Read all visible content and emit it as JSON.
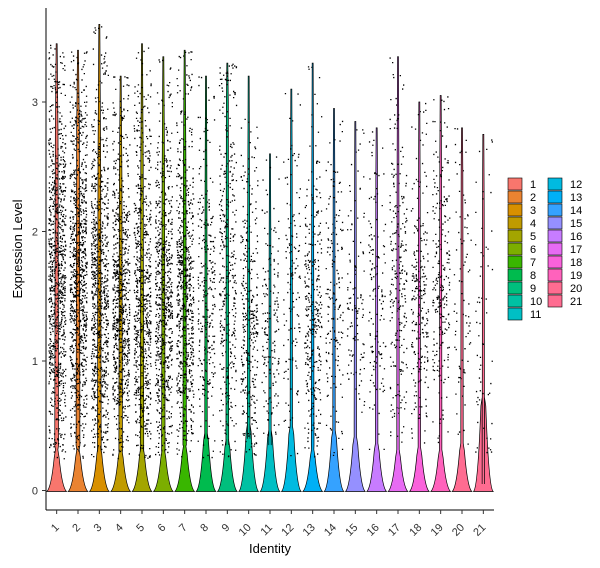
{
  "chart_data": {
    "type": "violin",
    "xlabel": "Identity",
    "ylabel": "Expression Level",
    "ylim": [
      -0.2,
      3.75
    ],
    "yticks": [
      0,
      1,
      2,
      3
    ],
    "categories": [
      "1",
      "2",
      "3",
      "4",
      "5",
      "6",
      "7",
      "8",
      "9",
      "10",
      "11",
      "12",
      "13",
      "14",
      "15",
      "16",
      "17",
      "18",
      "19",
      "20",
      "21"
    ],
    "colors": [
      "#F8766D",
      "#EA8331",
      "#D89000",
      "#C09B00",
      "#A3A500",
      "#7CAE00",
      "#39B600",
      "#00BB4E",
      "#00BF7D",
      "#00C1A3",
      "#00BFC4",
      "#00BAE0",
      "#00B0F6",
      "#35A2FF",
      "#9590FF",
      "#C77CFF",
      "#E76BF3",
      "#FA62DB",
      "#FF62BC",
      "#FF6C91",
      "#FF6C91"
    ],
    "groups": [
      {
        "id": "1",
        "max": 3.45,
        "base_height": 0.3,
        "body_top": 2.75,
        "body_bottom": 0.35,
        "density": 1.0
      },
      {
        "id": "2",
        "max": 3.4,
        "base_height": 0.3,
        "body_top": 2.8,
        "body_bottom": 0.35,
        "density": 1.0
      },
      {
        "id": "3",
        "max": 3.6,
        "base_height": 0.33,
        "body_top": 2.6,
        "body_bottom": 0.3,
        "density": 0.95
      },
      {
        "id": "4",
        "max": 3.2,
        "base_height": 0.3,
        "body_top": 2.45,
        "body_bottom": 0.3,
        "density": 0.9
      },
      {
        "id": "5",
        "max": 3.45,
        "base_height": 0.32,
        "body_top": 2.5,
        "body_bottom": 0.3,
        "density": 0.85
      },
      {
        "id": "6",
        "max": 3.35,
        "base_height": 0.3,
        "body_top": 2.45,
        "body_bottom": 0.3,
        "density": 0.85
      },
      {
        "id": "7",
        "max": 3.4,
        "base_height": 0.33,
        "body_top": 2.6,
        "body_bottom": 0.35,
        "density": 0.85
      },
      {
        "id": "8",
        "max": 3.2,
        "base_height": 0.43,
        "body_top": 2.4,
        "body_bottom": 0.4,
        "density": 0.5
      },
      {
        "id": "9",
        "max": 3.3,
        "base_height": 0.38,
        "body_top": 3.0,
        "body_bottom": 0.35,
        "density": 0.6
      },
      {
        "id": "10",
        "max": 3.2,
        "base_height": 0.5,
        "body_top": 2.2,
        "body_bottom": 0.4,
        "density": 0.55
      },
      {
        "id": "11",
        "max": 2.6,
        "base_height": 0.45,
        "body_top": 1.95,
        "body_bottom": 0.35,
        "density": 0.35
      },
      {
        "id": "12",
        "max": 3.1,
        "base_height": 0.48,
        "body_top": 2.5,
        "body_bottom": 0.5,
        "density": 0.3
      },
      {
        "id": "13",
        "max": 3.3,
        "base_height": 0.3,
        "body_top": 2.25,
        "body_bottom": 0.35,
        "density": 0.55
      },
      {
        "id": "14",
        "max": 2.95,
        "base_height": 0.45,
        "body_top": 2.4,
        "body_bottom": 0.6,
        "density": 0.35
      },
      {
        "id": "15",
        "max": 2.85,
        "base_height": 0.4,
        "body_top": 2.2,
        "body_bottom": 0.5,
        "density": 0.25
      },
      {
        "id": "16",
        "max": 2.8,
        "base_height": 0.35,
        "body_top": 2.4,
        "body_bottom": 0.55,
        "density": 0.3
      },
      {
        "id": "17",
        "max": 3.35,
        "base_height": 0.3,
        "body_top": 2.6,
        "body_bottom": 0.6,
        "density": 0.45
      },
      {
        "id": "18",
        "max": 3.0,
        "base_height": 0.32,
        "body_top": 2.3,
        "body_bottom": 0.5,
        "density": 0.45
      },
      {
        "id": "19",
        "max": 3.05,
        "base_height": 0.3,
        "body_top": 2.55,
        "body_bottom": 0.55,
        "density": 0.45
      },
      {
        "id": "20",
        "max": 2.8,
        "base_height": 0.35,
        "body_top": 2.45,
        "body_bottom": 0.5,
        "density": 0.18
      },
      {
        "id": "21",
        "max": 2.75,
        "base_height": 0.7,
        "body_top": 2.2,
        "body_bottom": 0.05,
        "density": 0.08
      }
    ],
    "legend": {
      "position": "right",
      "columns": 2
    }
  }
}
